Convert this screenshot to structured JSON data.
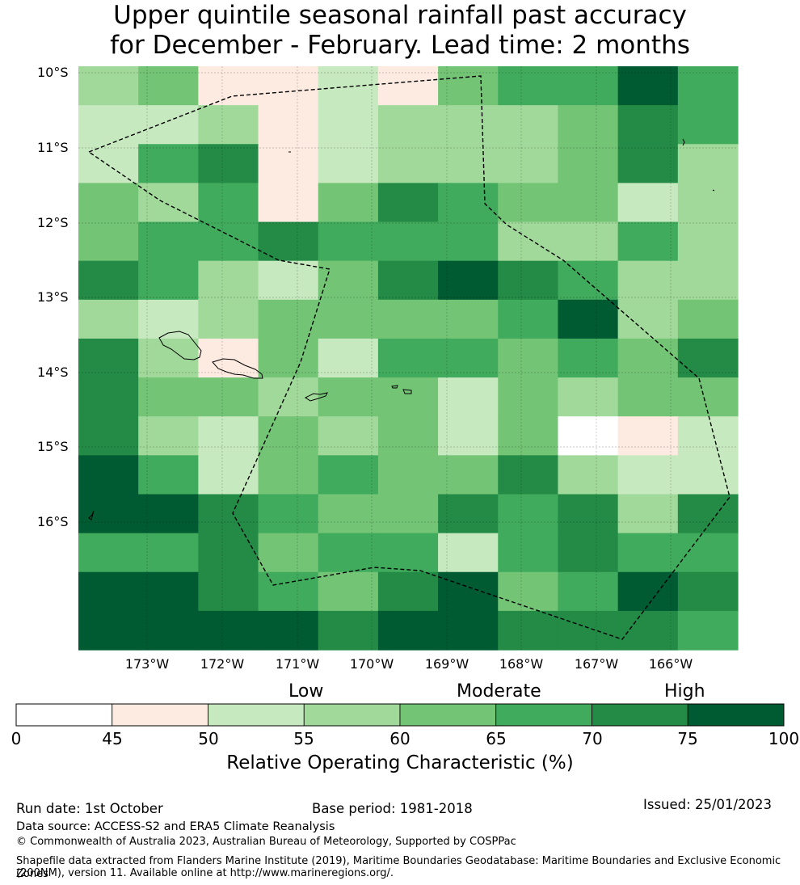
{
  "title": {
    "line1": "Upper quintile seasonal rainfall past accuracy",
    "line2": "for December - February. Lead time: 2 months"
  },
  "map": {
    "lat_labels": [
      "10°S",
      "11°S",
      "12°S",
      "13°S",
      "14°S",
      "15°S",
      "16°S"
    ],
    "lon_labels": [
      "173°W",
      "172°W",
      "171°W",
      "170°W",
      "169°W",
      "168°W",
      "167°W",
      "166°W"
    ],
    "grid_values": [
      [
        57.5,
        62.5,
        47.5,
        47.5,
        52.5,
        47.5,
        62.5,
        67.5,
        67.5,
        77.5,
        67.5
      ],
      [
        52.5,
        52.5,
        57.5,
        47.5,
        52.5,
        57.5,
        57.5,
        57.5,
        62.5,
        72.5,
        67.5
      ],
      [
        52.5,
        67.5,
        72.5,
        47.5,
        52.5,
        57.5,
        57.5,
        57.5,
        62.5,
        72.5,
        57.5
      ],
      [
        62.5,
        57.5,
        67.5,
        47.5,
        62.5,
        72.5,
        67.5,
        62.5,
        62.5,
        52.5,
        57.5
      ],
      [
        62.5,
        67.5,
        67.5,
        72.5,
        67.5,
        67.5,
        67.5,
        57.5,
        57.5,
        67.5,
        57.5
      ],
      [
        72.5,
        67.5,
        57.5,
        52.5,
        62.5,
        72.5,
        77.5,
        72.5,
        67.5,
        57.5,
        57.5
      ],
      [
        57.5,
        52.5,
        57.5,
        62.5,
        62.5,
        62.5,
        62.5,
        67.5,
        77.5,
        57.5,
        62.5
      ],
      [
        72.5,
        57.5,
        47.5,
        62.5,
        52.5,
        67.5,
        67.5,
        62.5,
        67.5,
        62.5,
        72.5
      ],
      [
        72.5,
        62.5,
        62.5,
        57.5,
        62.5,
        62.5,
        52.5,
        62.5,
        57.5,
        62.5,
        62.5
      ],
      [
        72.5,
        57.5,
        52.5,
        62.5,
        57.5,
        62.5,
        52.5,
        62.5,
        40.0,
        47.5,
        52.5
      ],
      [
        77.5,
        67.5,
        52.5,
        62.5,
        67.5,
        62.5,
        62.5,
        72.5,
        57.5,
        52.5,
        52.5
      ],
      [
        77.5,
        77.5,
        72.5,
        67.5,
        62.5,
        62.5,
        72.5,
        67.5,
        72.5,
        57.5,
        72.5
      ],
      [
        67.5,
        67.5,
        72.5,
        62.5,
        67.5,
        67.5,
        52.5,
        67.5,
        72.5,
        67.5,
        67.5
      ],
      [
        77.5,
        77.5,
        72.5,
        67.5,
        62.5,
        72.5,
        77.5,
        62.5,
        67.5,
        77.5,
        72.5
      ],
      [
        77.5,
        77.5,
        77.5,
        77.5,
        72.5,
        77.5,
        77.5,
        72.5,
        72.5,
        72.5,
        67.5
      ]
    ]
  },
  "colorbar": {
    "categories": [
      "Low",
      "Moderate",
      "High"
    ],
    "ticks": [
      "0",
      "45",
      "50",
      "55",
      "60",
      "65",
      "70",
      "75",
      "100"
    ],
    "bins": [
      {
        "from": 0,
        "to": 45,
        "color": "#ffffff"
      },
      {
        "from": 45,
        "to": 50,
        "color": "#fdebe2"
      },
      {
        "from": 50,
        "to": 55,
        "color": "#c7e9c0"
      },
      {
        "from": 55,
        "to": 60,
        "color": "#a1d99b"
      },
      {
        "from": 60,
        "to": 65,
        "color": "#74c476"
      },
      {
        "from": 65,
        "to": 70,
        "color": "#41ab5d"
      },
      {
        "from": 70,
        "to": 75,
        "color": "#238b45"
      },
      {
        "from": 75,
        "to": 100,
        "color": "#005a32"
      }
    ],
    "title": "Relative Operating Characteristic (%)"
  },
  "footer": {
    "run_date": "Run date: 1st October",
    "base_period": "Base period: 1981-2018",
    "issued": "Issued: 25/01/2023",
    "data_source": "Data source: ACCESS-S2 and ERA5 Climate Reanalysis",
    "copyright": "© Commonwealth of Australia 2023, Australian Bureau of Meteorology, Supported by COSPPac",
    "shapefile_line1": "Shapefile data extracted from Flanders Marine Institute (2019), Maritime Boundaries Geodatabase: Maritime Boundaries and Exclusive Economic Zones",
    "shapefile_line2": "(200NM), version 11. Available online at http://www.marineregions.org/."
  }
}
